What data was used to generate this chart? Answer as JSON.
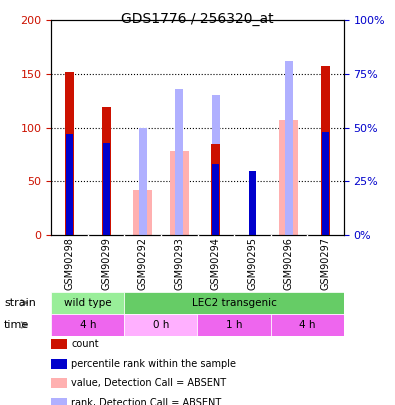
{
  "title": "GDS1776 / 256320_at",
  "samples": [
    "GSM90298",
    "GSM90299",
    "GSM90292",
    "GSM90293",
    "GSM90294",
    "GSM90295",
    "GSM90296",
    "GSM90297"
  ],
  "count": [
    152,
    119,
    null,
    null,
    85,
    null,
    null,
    157
  ],
  "percentile_rank": [
    47,
    43,
    null,
    null,
    33,
    30,
    null,
    48
  ],
  "value_absent": [
    null,
    null,
    42,
    78,
    null,
    null,
    107,
    null
  ],
  "rank_absent": [
    null,
    null,
    50,
    68,
    65,
    null,
    81,
    null
  ],
  "ylim_left": [
    0,
    200
  ],
  "ylim_right": [
    0,
    100
  ],
  "yticks_left": [
    0,
    50,
    100,
    150,
    200
  ],
  "yticks_right": [
    0,
    25,
    50,
    75,
    100
  ],
  "ytick_labels_left": [
    "0",
    "50",
    "100",
    "150",
    "200"
  ],
  "ytick_labels_right": [
    "0%",
    "25%",
    "50%",
    "75%",
    "100%"
  ],
  "color_count": "#cc1100",
  "color_rank": "#0000cc",
  "color_value_absent": "#ffb0b0",
  "color_rank_absent": "#b0b0ff",
  "strain_labels": [
    {
      "label": "wild type",
      "start": 0,
      "end": 2,
      "color": "#99ee99"
    },
    {
      "label": "LEC2 transgenic",
      "start": 2,
      "end": 8,
      "color": "#66cc66"
    }
  ],
  "time_labels": [
    {
      "label": "4 h",
      "start": 0,
      "end": 2,
      "color": "#ee66ee"
    },
    {
      "label": "0 h",
      "start": 2,
      "end": 4,
      "color": "#ffb0ff"
    },
    {
      "label": "1 h",
      "start": 4,
      "end": 6,
      "color": "#ee66ee"
    },
    {
      "label": "4 h",
      "start": 6,
      "end": 8,
      "color": "#ee66ee"
    }
  ],
  "bar_width": 0.35,
  "legend_items": [
    {
      "label": "count",
      "color": "#cc1100"
    },
    {
      "label": "percentile rank within the sample",
      "color": "#0000cc"
    },
    {
      "label": "value, Detection Call = ABSENT",
      "color": "#ffb0b0"
    },
    {
      "label": "rank, Detection Call = ABSENT",
      "color": "#b0b0ff"
    }
  ]
}
